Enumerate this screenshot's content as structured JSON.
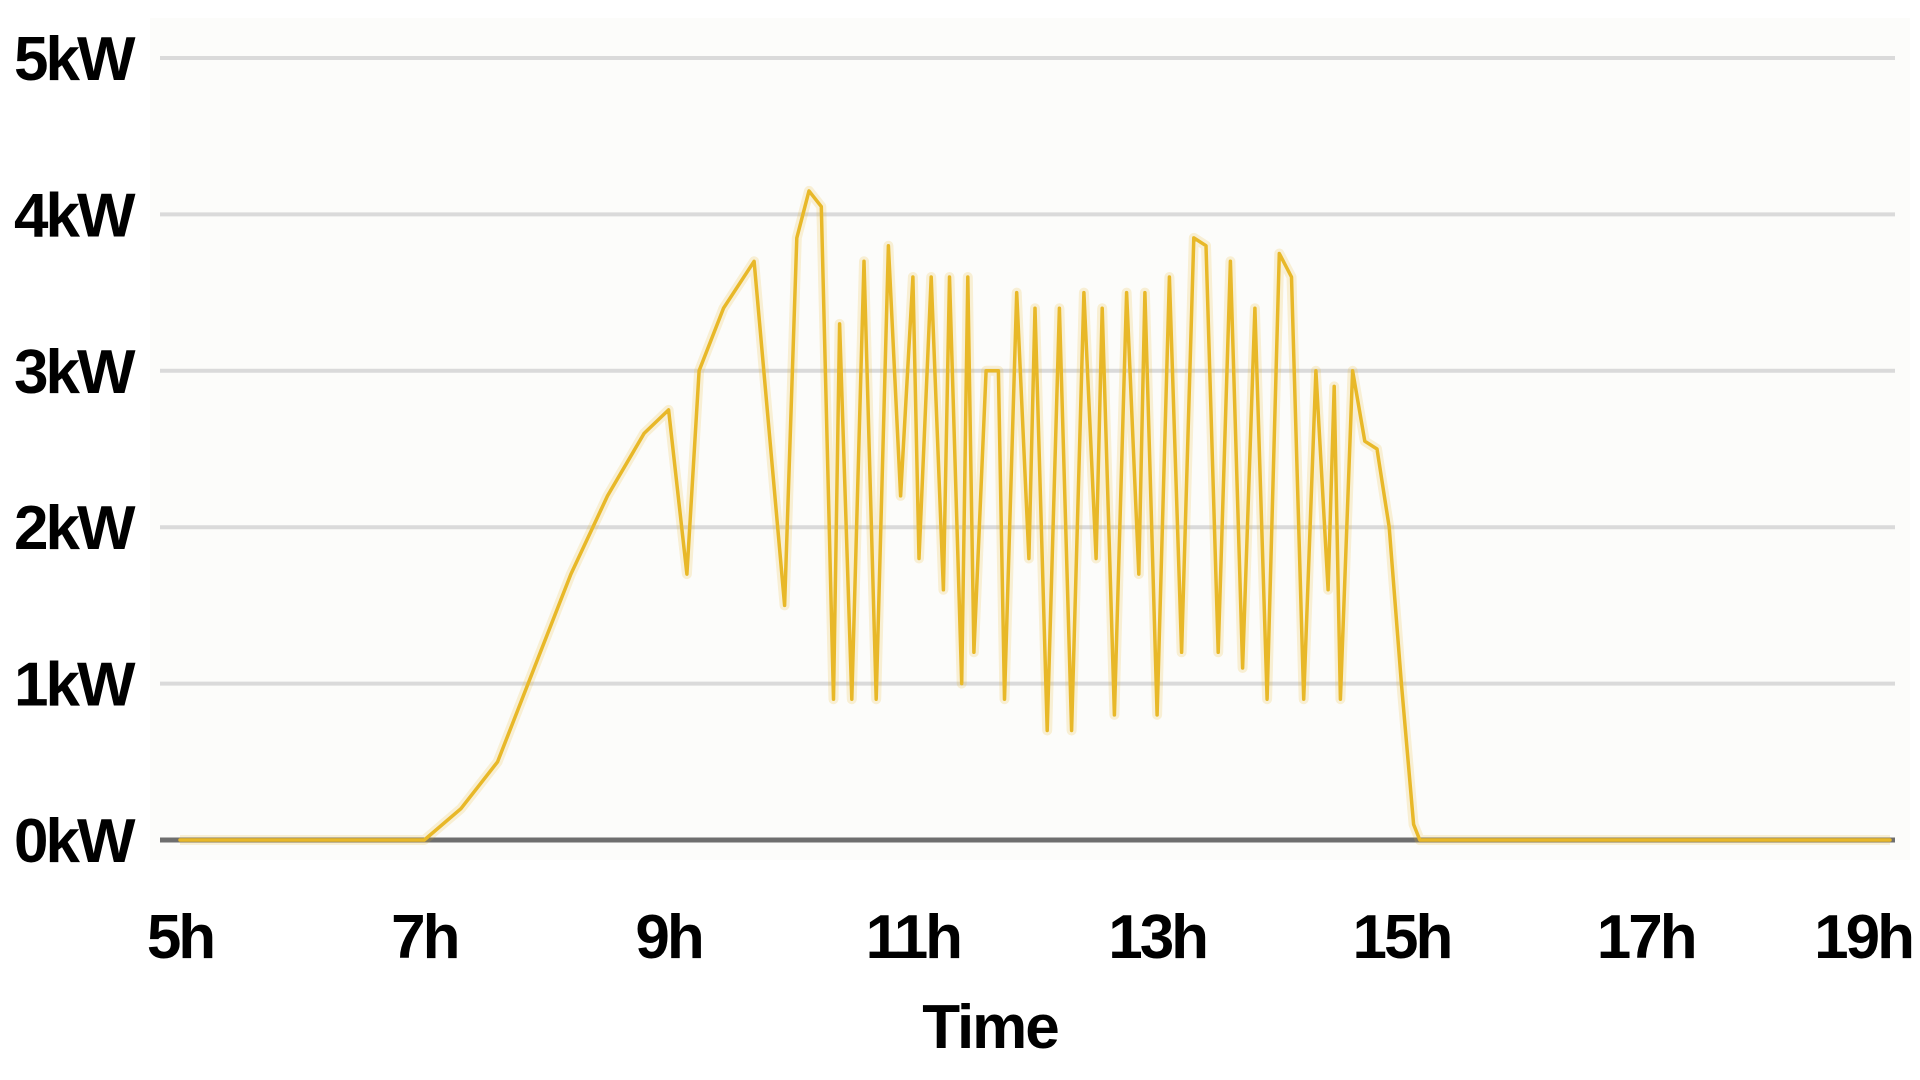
{
  "chart_data": {
    "type": "line",
    "title": "",
    "xlabel": "Time",
    "ylabel": "",
    "x_tick_labels": [
      "5h",
      "7h",
      "9h",
      "11h",
      "13h",
      "15h",
      "17h",
      "19h"
    ],
    "x_tick_values": [
      5,
      7,
      9,
      11,
      13,
      15,
      17,
      19
    ],
    "y_tick_labels": [
      "0kW",
      "1kW",
      "2kW",
      "3kW",
      "4kW",
      "5kW"
    ],
    "y_tick_values": [
      0,
      1,
      2,
      3,
      4,
      5
    ],
    "xlim": [
      5,
      19
    ],
    "ylim": [
      0,
      5
    ],
    "grid": true,
    "legend": "none",
    "colors": {
      "line": "#E8B828",
      "grid": "#DADADA",
      "baseline": "#6E6E6E",
      "plot_background": "#FCFCFA"
    },
    "series": [
      {
        "x": [
          5.0,
          6.0,
          7.0,
          7.3,
          7.6,
          7.9,
          8.2,
          8.5,
          8.8,
          9.0,
          9.15,
          9.25,
          9.35,
          9.45,
          9.7,
          9.95,
          10.05,
          10.15,
          10.25,
          10.35,
          10.4,
          10.5,
          10.6,
          10.7,
          10.8,
          10.9,
          11.0,
          11.05,
          11.15,
          11.25,
          11.3,
          11.4,
          11.45,
          11.5,
          11.6,
          11.7,
          11.75,
          11.85,
          11.95,
          12.0,
          12.1,
          12.2,
          12.3,
          12.4,
          12.5,
          12.55,
          12.65,
          12.75,
          12.85,
          12.9,
          13.0,
          13.1,
          13.2,
          13.3,
          13.4,
          13.5,
          13.6,
          13.7,
          13.8,
          13.9,
          14.0,
          14.1,
          14.2,
          14.3,
          14.4,
          14.45,
          14.5,
          14.6,
          14.7,
          14.8,
          14.9,
          15.0,
          15.1,
          15.15,
          15.25,
          15.35,
          15.45,
          15.55,
          15.65,
          15.75,
          15.85,
          15.95,
          16.05,
          16.15,
          16.5,
          16.8,
          17.0,
          17.1,
          17.3,
          17.5,
          18.0,
          18.5,
          19.0
        ],
        "y": [
          0.0,
          0.0,
          0.0,
          0.2,
          0.5,
          1.1,
          1.7,
          2.2,
          2.6,
          2.75,
          1.7,
          3.0,
          3.2,
          3.4,
          3.7,
          1.5,
          3.85,
          4.15,
          4.05,
          0.9,
          3.3,
          0.9,
          3.7,
          0.9,
          3.8,
          2.2,
          3.6,
          1.8,
          3.6,
          1.6,
          3.6,
          1.0,
          3.6,
          1.2,
          3.0,
          3.0,
          0.9,
          3.5,
          1.8,
          3.4,
          0.7,
          3.4,
          0.7,
          3.5,
          1.8,
          3.4,
          0.8,
          3.5,
          1.7,
          3.5,
          0.8,
          3.6,
          1.2,
          3.85,
          3.8,
          1.2,
          3.7,
          1.1,
          3.4,
          0.9,
          3.75,
          3.6,
          0.9,
          3.0,
          1.6,
          2.9,
          0.9,
          3.0,
          2.55,
          2.5,
          2.0,
          1.0,
          0.1,
          0.0,
          0.0,
          0.0,
          0.0,
          0.0,
          0.0,
          0.0,
          0.0,
          0.0,
          0.0,
          0.0,
          0.0,
          0.0,
          0.0,
          0.0,
          0.0,
          0.0,
          0.0,
          0.0,
          0.0
        ]
      }
    ]
  }
}
